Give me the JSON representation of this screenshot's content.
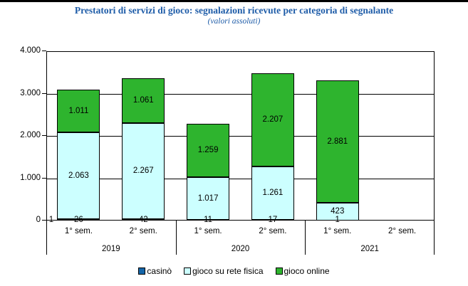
{
  "page": {
    "title_color": "#1E5CA8"
  },
  "chart_data": {
    "type": "bar",
    "stacked": true,
    "title": "Prestatori di servizi di gioco: segnalazioni ricevute per categoria di segnalante",
    "subtitle": "(valori assoluti)",
    "ylim": [
      0,
      4000
    ],
    "grid": true,
    "legend_position": "bottom",
    "y_ticks": [
      {
        "value": 4000,
        "label": "4.000"
      },
      {
        "value": 3000,
        "label": "3.000"
      },
      {
        "value": 2000,
        "label": "2.000"
      },
      {
        "value": 1000,
        "label": "1.000"
      },
      {
        "value": 0,
        "label": "0"
      }
    ],
    "groups": [
      {
        "label": "2019",
        "categories": [
          "1° sem.",
          "2° sem."
        ]
      },
      {
        "label": "2020",
        "categories": [
          "1° sem.",
          "2° sem."
        ]
      },
      {
        "label": "2021",
        "categories": [
          "1° sem.",
          "2° sem."
        ]
      }
    ],
    "categories": [
      "2019 1° sem.",
      "2019 2° sem.",
      "2020 1° sem.",
      "2020 2° sem.",
      "2021 1° sem.",
      "2021 2° sem."
    ],
    "series": [
      {
        "name": "casinò",
        "color": "#1565A8",
        "values": [
          26,
          42,
          11,
          17,
          1,
          null
        ],
        "labels": [
          "26",
          "42",
          "11",
          "17",
          "1",
          ""
        ]
      },
      {
        "name": "gioco su rete fisica",
        "color": "#CCFFFF",
        "values": [
          2063,
          2267,
          1017,
          1261,
          423,
          null
        ],
        "labels": [
          "2.063",
          "2.267",
          "1.017",
          "1.261",
          "423",
          ""
        ]
      },
      {
        "name": "gioco online",
        "color": "#2EB42E",
        "values": [
          1011,
          1061,
          1259,
          2207,
          2881,
          null
        ],
        "labels": [
          "1.011",
          "1.061",
          "1.259",
          "2.207",
          "2.881",
          ""
        ]
      }
    ],
    "axis_artifact_label": "1"
  }
}
